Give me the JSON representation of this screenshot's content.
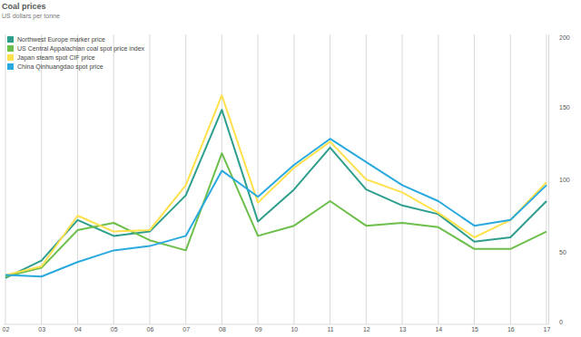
{
  "chart_data": {
    "type": "line",
    "title": "Coal prices",
    "subtitle": "US dollars per tonne",
    "categories": [
      "02",
      "03",
      "04",
      "05",
      "06",
      "07",
      "08",
      "09",
      "10",
      "11",
      "12",
      "13",
      "14",
      "15",
      "16",
      "17"
    ],
    "series": [
      {
        "name": "Northwest Europe marker price",
        "color": "#2e9e8c",
        "values": [
          32,
          44,
          72,
          61,
          64,
          89,
          148,
          71,
          93,
          122,
          93,
          82,
          76,
          57,
          60,
          85
        ]
      },
      {
        "name": "US Central Appalachian coal spot price index",
        "color": "#6cbf4a",
        "values": [
          33,
          39,
          65,
          70,
          58,
          51,
          118,
          61,
          68,
          85,
          68,
          70,
          67,
          52,
          52,
          64
        ]
      },
      {
        "name": "Japan steam spot CIF price",
        "color": "#ffe14d",
        "values": [
          34,
          40,
          75,
          64,
          65,
          96,
          158,
          84,
          108,
          126,
          100,
          91,
          77,
          60,
          72,
          98
        ]
      },
      {
        "name": "China Qinhuangdao spot price",
        "color": "#2aa9df",
        "values": [
          34,
          33,
          43,
          51,
          54,
          61,
          106,
          88,
          110,
          128,
          112,
          96,
          85,
          68,
          72,
          96
        ]
      }
    ],
    "ylim": [
      0,
      200
    ],
    "yticks": [
      0,
      50,
      100,
      150,
      200
    ],
    "grid": true,
    "legend": "top-left"
  }
}
